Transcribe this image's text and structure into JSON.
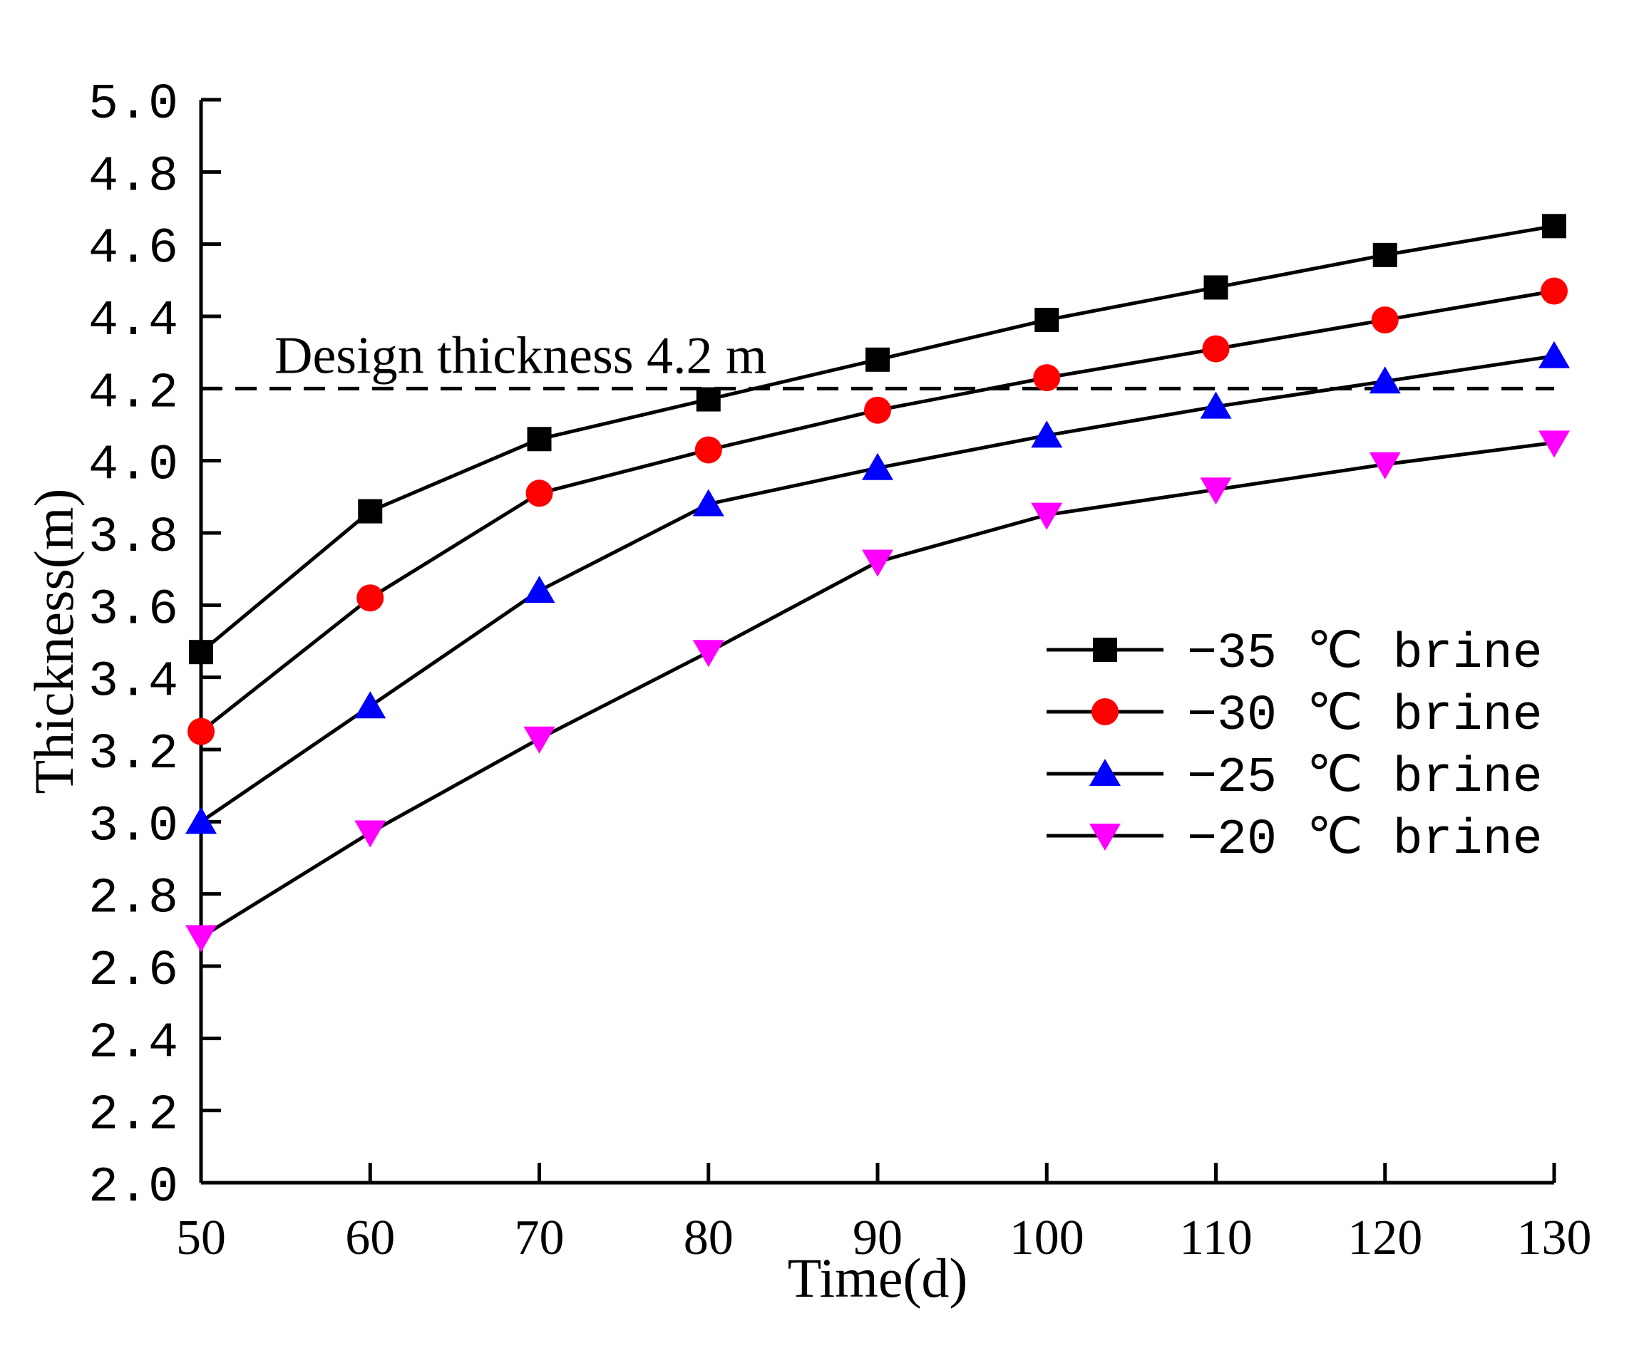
{
  "chart_data": {
    "type": "line",
    "title": "",
    "xlabel": "Time(d)",
    "ylabel": "Thickness(m)",
    "xlim": [
      50,
      130
    ],
    "ylim": [
      2.0,
      5.0
    ],
    "xticks": [
      50,
      60,
      70,
      80,
      90,
      100,
      110,
      120,
      130
    ],
    "yticks": [
      "2.0",
      "2.2",
      "2.4",
      "2.6",
      "2.8",
      "3.0",
      "3.2",
      "3.4",
      "3.6",
      "3.8",
      "4.0",
      "4.2",
      "4.4",
      "4.6",
      "4.8",
      "5.0"
    ],
    "grid": false,
    "legend_position": "center-right",
    "x": [
      50,
      60,
      70,
      80,
      90,
      100,
      110,
      120,
      130
    ],
    "series": [
      {
        "name": "−35 ℃ brine",
        "marker": "square",
        "color": "#000000",
        "values": [
          3.47,
          3.86,
          4.06,
          4.17,
          4.28,
          4.39,
          4.48,
          4.57,
          4.65
        ]
      },
      {
        "name": "−30 ℃ brine",
        "marker": "circle",
        "color": "#ff0000",
        "values": [
          3.25,
          3.62,
          3.91,
          4.03,
          4.14,
          4.23,
          4.31,
          4.39,
          4.47
        ]
      },
      {
        "name": "−25 ℃ brine",
        "marker": "triangle-up",
        "color": "#0000ff",
        "values": [
          3.0,
          3.32,
          3.64,
          3.88,
          3.98,
          4.07,
          4.15,
          4.22,
          4.29
        ]
      },
      {
        "name": "−20 ℃ brine",
        "marker": "triangle-down",
        "color": "#ff00ff",
        "values": [
          2.68,
          2.97,
          3.23,
          3.47,
          3.72,
          3.85,
          3.92,
          3.99,
          4.05
        ]
      }
    ],
    "annotations": [
      {
        "text": "Design thickness 4.2 m",
        "y": 4.2,
        "line_style": "dashed"
      }
    ]
  }
}
